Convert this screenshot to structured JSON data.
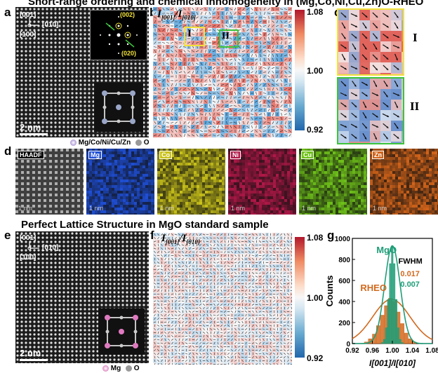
{
  "titles": {
    "top": "Short-range ordering and chemical inhomogeneity in (Mg,Co,Ni,Cu,Zn)O-RHEO",
    "middle": "Perfect Lattice Structure in MgO standard sample"
  },
  "panels": {
    "a": {
      "label": "a",
      "dir_001": "[001]",
      "dir_010": "[010]",
      "dir_100": "[100]",
      "fft_002": "(002)",
      "fft_020": "(020)",
      "scale": "2 nm",
      "legend_metal": "Mg/Co/Ni/Cu/Zn",
      "legend_o": "O"
    },
    "b": {
      "label": "b",
      "ratio_num": "I",
      "ratio_num_sub": "[001]",
      "ratio_den": "I",
      "ratio_den_sub": "[010]",
      "region_1": "I",
      "region_2": "II",
      "cbar_max": "1.08",
      "cbar_mid": "1.00",
      "cbar_min": "0.92"
    },
    "c": {
      "label": "c",
      "region_1": "I",
      "region_2": "II"
    },
    "d": {
      "label": "d",
      "maps": [
        {
          "name": "HAADF",
          "scale": "1 nm",
          "color": "#bdbdbd"
        },
        {
          "name": "Mg",
          "scale": "1 nm",
          "color": "#1f4fd6"
        },
        {
          "name": "Co",
          "scale": "1 nm",
          "color": "#c9c21a"
        },
        {
          "name": "Ni",
          "scale": "1 nm",
          "color": "#b01848"
        },
        {
          "name": "Cu",
          "scale": "1 nm",
          "color": "#6fc21a"
        },
        {
          "name": "Zn",
          "scale": "1 nm",
          "color": "#d2641a"
        }
      ]
    },
    "e": {
      "label": "e",
      "dir_001": "[001]",
      "dir_010": "[010]",
      "dir_100": "[100]",
      "scale": "2 nm",
      "legend_mg": "Mg",
      "legend_o": "O"
    },
    "f": {
      "label": "f",
      "ratio_num": "I",
      "ratio_num_sub": "[001]",
      "ratio_den": "I",
      "ratio_den_sub": "[010]",
      "cbar_max": "1.08",
      "cbar_mid": "1.00",
      "cbar_min": "0.92"
    },
    "g": {
      "label": "g",
      "fwhm_title": "FWHM",
      "mgo_label": "MgO",
      "rheo_label": "RHEO",
      "fwhm_rheo": "0.017",
      "fwhm_mgo": "0.007"
    }
  },
  "colors": {
    "mgo": "#1f9e78",
    "rheo": "#d2691e",
    "yellow": "#f2e23a",
    "green": "#3cc43c"
  },
  "chart_data": {
    "type": "bar",
    "xlabel": "I[001]/I[010]",
    "ylabel": "Counts",
    "xlim": [
      0.92,
      1.08
    ],
    "ylim": [
      0,
      1000
    ],
    "xticks": [
      "0.92",
      "0.96",
      "1.00",
      "1.04",
      "1.08"
    ],
    "yticks": [
      "0",
      "200",
      "400",
      "600",
      "800",
      "1000"
    ],
    "series": [
      {
        "name": "MgO",
        "x": [
          0.98,
          0.984,
          0.988,
          0.992,
          0.996,
          1.0,
          1.004,
          1.008,
          1.012,
          1.016,
          1.02
        ],
        "values": [
          10,
          40,
          150,
          420,
          760,
          930,
          760,
          420,
          150,
          40,
          10
        ],
        "fit_center": 1.0,
        "fit_fwhm": 0.007,
        "fit_peak": 930
      },
      {
        "name": "RHEO",
        "x": [
          0.948,
          0.956,
          0.964,
          0.972,
          0.98,
          0.988,
          0.996,
          1.004,
          1.012,
          1.02,
          1.028,
          1.036,
          1.044
        ],
        "values": [
          15,
          45,
          90,
          170,
          270,
          360,
          430,
          400,
          300,
          190,
          100,
          45,
          15
        ],
        "fit_center": 0.998,
        "fit_fwhm": 0.017,
        "fit_peak": 420
      }
    ]
  }
}
